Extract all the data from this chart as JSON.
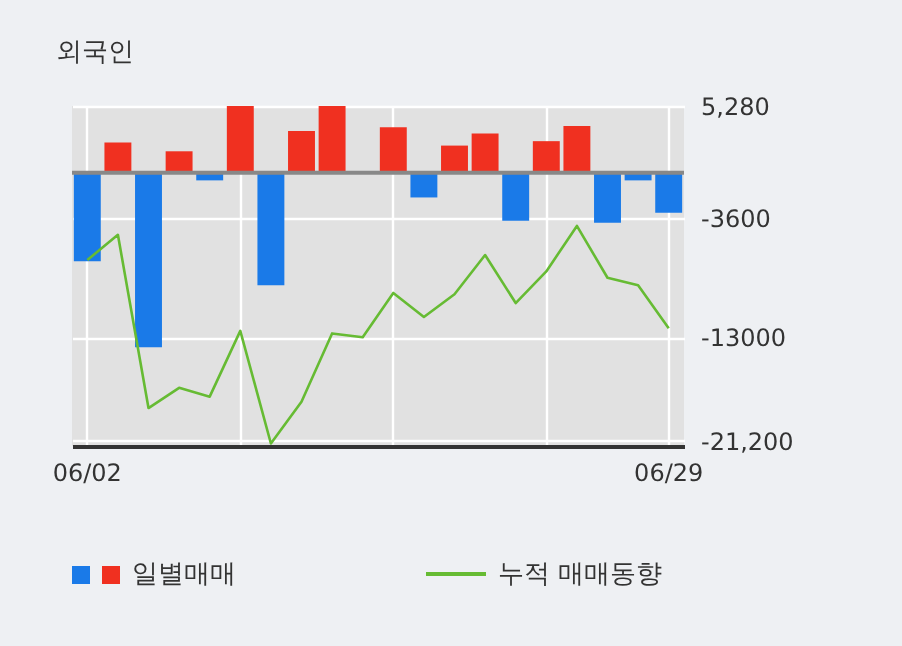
{
  "chart_data": {
    "type": "bar",
    "title": "외국인",
    "categories": [
      "06/02",
      null,
      null,
      null,
      null,
      null,
      null,
      null,
      null,
      null,
      null,
      null,
      null,
      null,
      null,
      null,
      null,
      null,
      null,
      "06/29"
    ],
    "series": [
      {
        "name": "일별매매",
        "colors": [
          "#1a7ae8",
          "#f03020",
          "#1a7ae8",
          "#f03020",
          "#1a7ae8",
          "#f03020",
          "#1a7ae8",
          "#f03020",
          "#f03020",
          "#f03020",
          "#f03020",
          "#1a7ae8",
          "#f03020",
          "#f03020",
          "#1a7ae8",
          "#f03020",
          "#f03020",
          "#1a7ae8",
          "#1a7ae8",
          "#1a7ae8"
        ],
        "values": [
          -7000,
          2400,
          -13800,
          1700,
          -600,
          5280,
          -8900,
          3300,
          5280,
          0,
          3600,
          -1950,
          2150,
          3100,
          -3800,
          2500,
          3700,
          -3950,
          -600,
          -3150
        ]
      },
      {
        "name": "누적 매매동향",
        "type": "line",
        "color": "#66bb33",
        "values": [
          -6900,
          -4900,
          -18600,
          -17000,
          -17700,
          -12500,
          -21400,
          -18100,
          -12700,
          -13000,
          -9500,
          -11400,
          -9600,
          -6500,
          -10300,
          -7800,
          -4200,
          -8300,
          -8900,
          -12300
        ]
      }
    ],
    "ylim": [
      -21600,
      5280
    ],
    "yticks": [
      {
        "value": 5280,
        "label": "5,280"
      },
      -3600,
      -13000,
      {
        "value": -21200,
        "label": "-21,200"
      }
    ],
    "ref_lines": [
      {
        "axis": "y",
        "value": 0,
        "color": "#888888"
      }
    ],
    "grid": true,
    "legend": "bottom"
  }
}
